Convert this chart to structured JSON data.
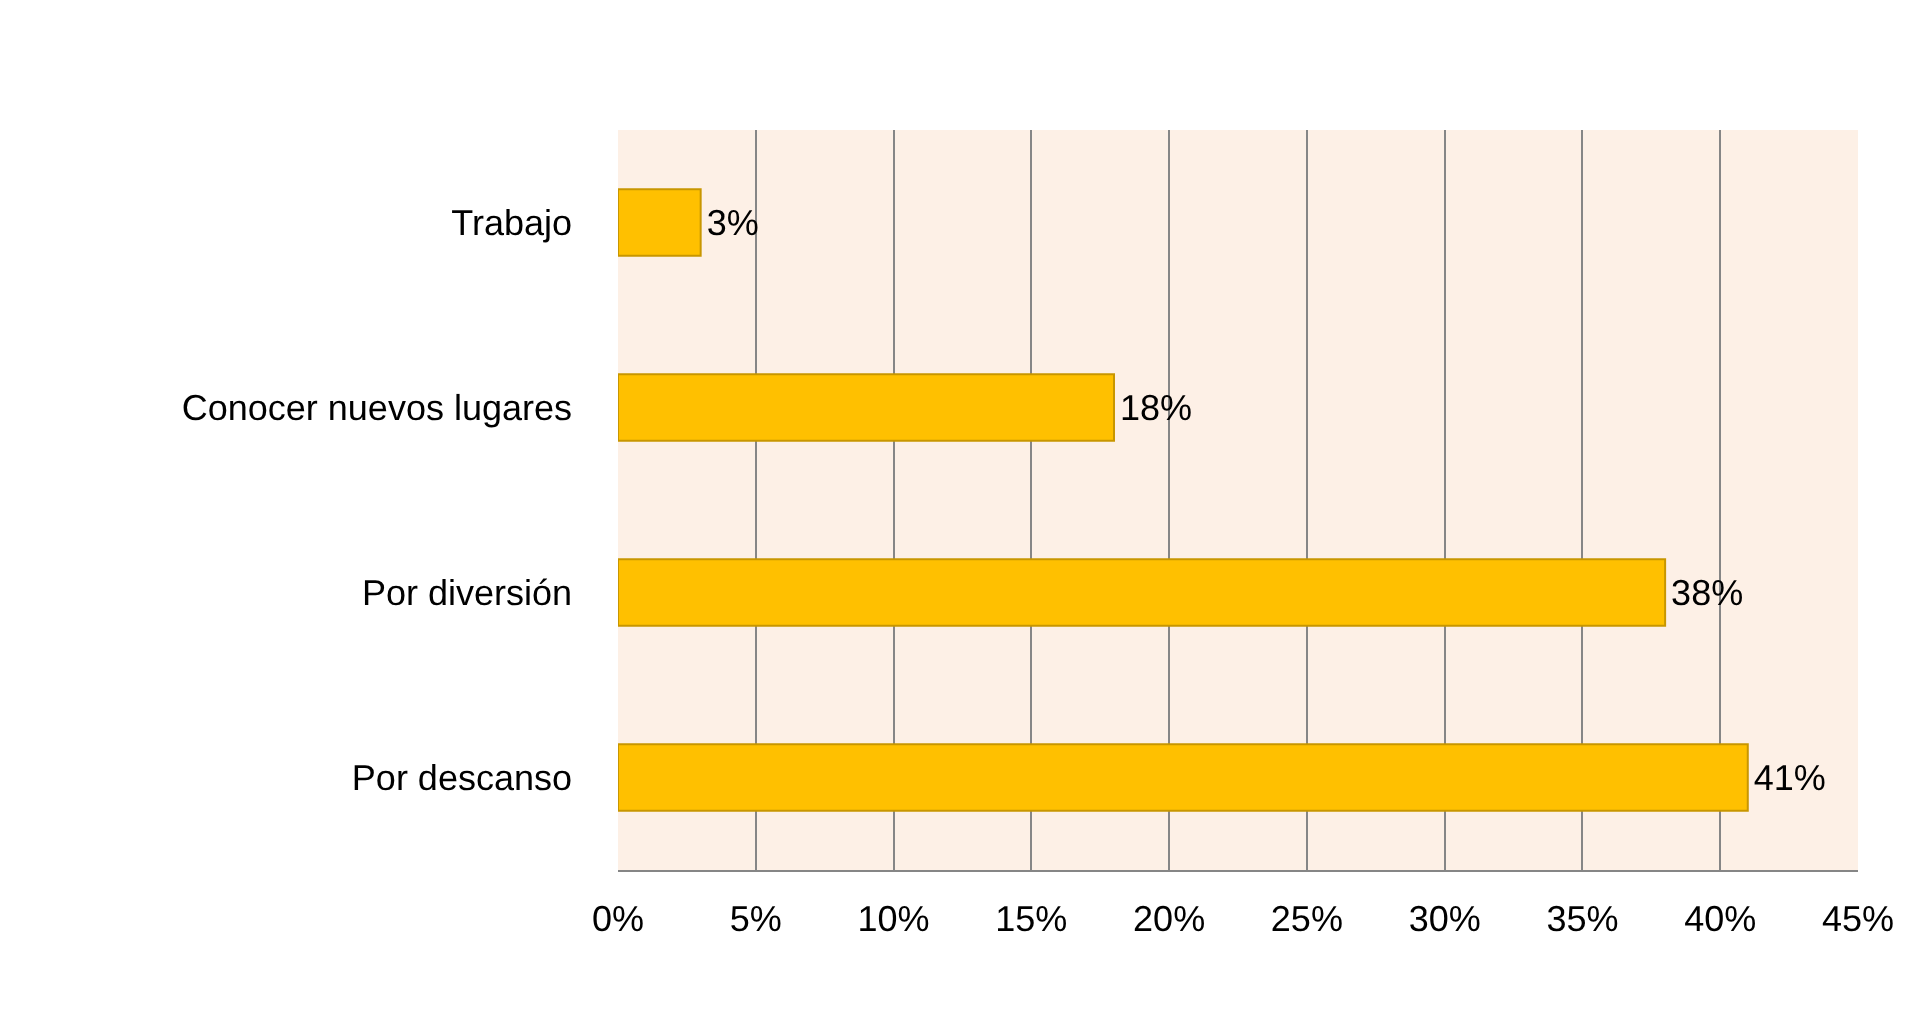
{
  "chart_data": {
    "type": "bar",
    "orientation": "horizontal",
    "categories": [
      "Trabajo",
      "Conocer nuevos lugares",
      "Por diversión",
      "Por descanso"
    ],
    "values": [
      3,
      18,
      38,
      41
    ],
    "value_labels": [
      "3%",
      "18%",
      "38%",
      "41%"
    ],
    "color": "#ffc000",
    "xlim": [
      0,
      45
    ],
    "xticks": [
      {
        "value": 0,
        "label": "0%"
      },
      {
        "value": 5,
        "label": "5%"
      },
      {
        "value": 10,
        "label": "10%"
      },
      {
        "value": 15,
        "label": "15%"
      },
      {
        "value": 20,
        "label": "20%"
      },
      {
        "value": 25,
        "label": "25%"
      },
      {
        "value": 30,
        "label": "30%"
      },
      {
        "value": 35,
        "label": "35%"
      },
      {
        "value": 40,
        "label": "40%"
      },
      {
        "value": 45,
        "label": "45%"
      }
    ],
    "grid": "x",
    "legend": false
  }
}
